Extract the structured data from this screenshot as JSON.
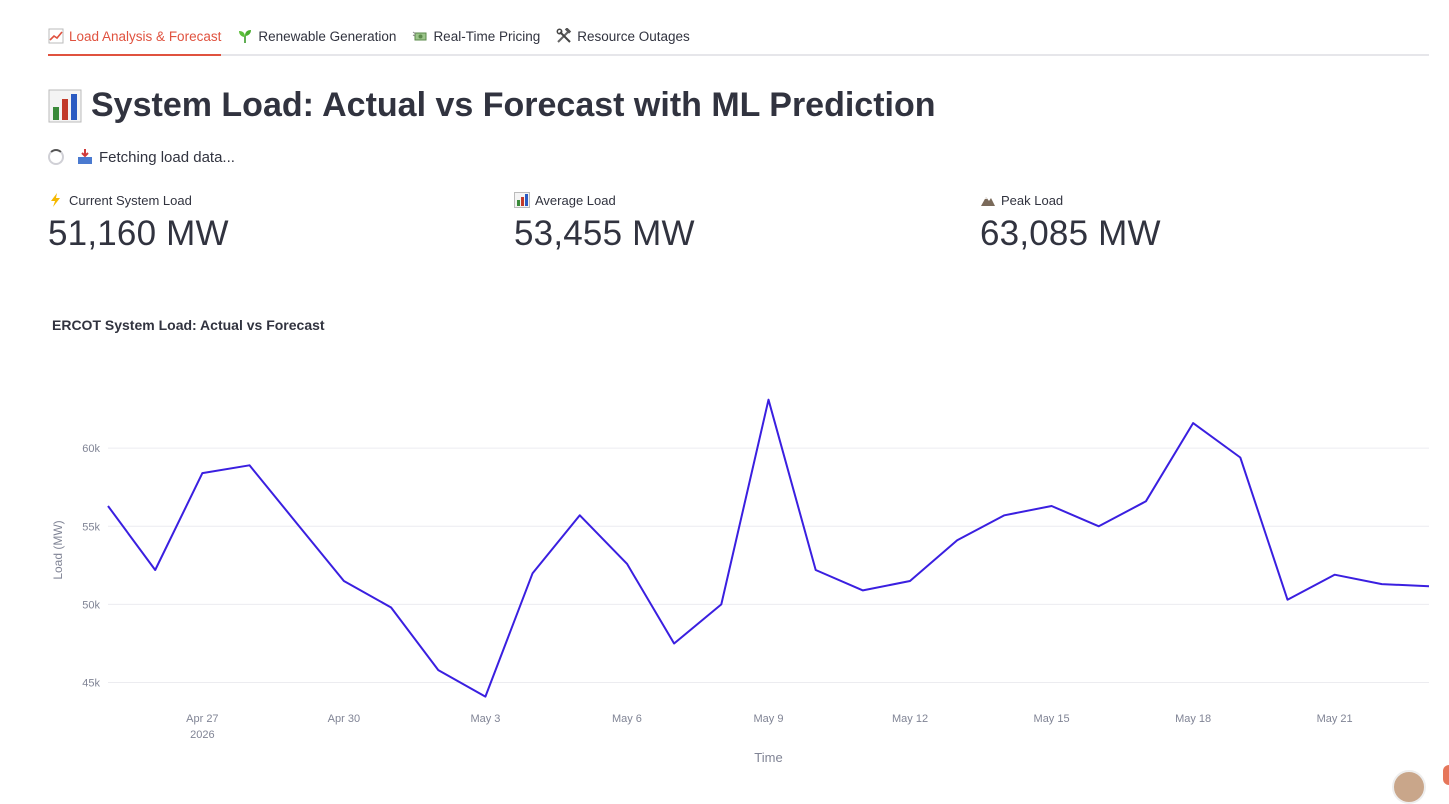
{
  "tabs": [
    {
      "label": "Load Analysis & Forecast",
      "icon": "chart-increasing-icon",
      "active": true
    },
    {
      "label": "Renewable Generation",
      "icon": "seedling-icon",
      "active": false
    },
    {
      "label": "Real-Time Pricing",
      "icon": "money-with-wings-icon",
      "active": false
    },
    {
      "label": "Resource Outages",
      "icon": "hammer-and-wrench-icon",
      "active": false
    }
  ],
  "page": {
    "title": "System Load: Actual vs Forecast with ML Prediction",
    "title_icon": "bar-chart-icon",
    "status_text": "Fetching load data...",
    "status_icon": "inbox-tray-icon"
  },
  "metrics": [
    {
      "label": "Current System Load",
      "value": "51,160 MW",
      "icon": "lightning-icon"
    },
    {
      "label": "Average Load",
      "value": "53,455 MW",
      "icon": "bar-chart-icon"
    },
    {
      "label": "Peak Load",
      "value": "63,085 MW",
      "icon": "mountain-icon"
    }
  ],
  "colors": {
    "accent": "#e0523f",
    "series": "#3a1fe0"
  },
  "chart_data": {
    "type": "line",
    "title": "ERCOT System Load: Actual vs Forecast",
    "xlabel": "Time",
    "ylabel": "Load (MW)",
    "ylim": [
      43500,
      65000
    ],
    "yticks": [
      45000,
      50000,
      55000,
      60000
    ],
    "ytick_labels": [
      "45k",
      "50k",
      "55k",
      "60k"
    ],
    "xlim": [
      "2026-04-25",
      "2026-05-23"
    ],
    "xticks": [
      "2026-04-27",
      "2026-04-30",
      "2026-05-03",
      "2026-05-06",
      "2026-05-09",
      "2026-05-12",
      "2026-05-15",
      "2026-05-18",
      "2026-05-21"
    ],
    "xtick_labels": [
      "Apr 27",
      "Apr 30",
      "May 3",
      "May 6",
      "May 9",
      "May 12",
      "May 15",
      "May 18",
      "May 21"
    ],
    "xtick_year": "2026",
    "grid": true,
    "x": [
      "2026-04-25",
      "2026-04-26",
      "2026-04-27",
      "2026-04-28",
      "2026-04-29",
      "2026-04-30",
      "2026-05-01",
      "2026-05-02",
      "2026-05-03",
      "2026-05-04",
      "2026-05-05",
      "2026-05-06",
      "2026-05-07",
      "2026-05-08",
      "2026-05-09",
      "2026-05-10",
      "2026-05-11",
      "2026-05-12",
      "2026-05-13",
      "2026-05-14",
      "2026-05-15",
      "2026-05-16",
      "2026-05-17",
      "2026-05-18",
      "2026-05-19",
      "2026-05-20",
      "2026-05-21",
      "2026-05-22",
      "2026-05-23"
    ],
    "series": [
      {
        "values": [
          56300,
          52200,
          58400,
          58900,
          55200,
          51500,
          49800,
          45800,
          44100,
          52000,
          55700,
          52600,
          47500,
          50000,
          63100,
          52200,
          50900,
          51500,
          54100,
          55700,
          56300,
          55000,
          56600,
          61600,
          59400,
          50300,
          51900,
          51300,
          51160
        ]
      }
    ]
  }
}
